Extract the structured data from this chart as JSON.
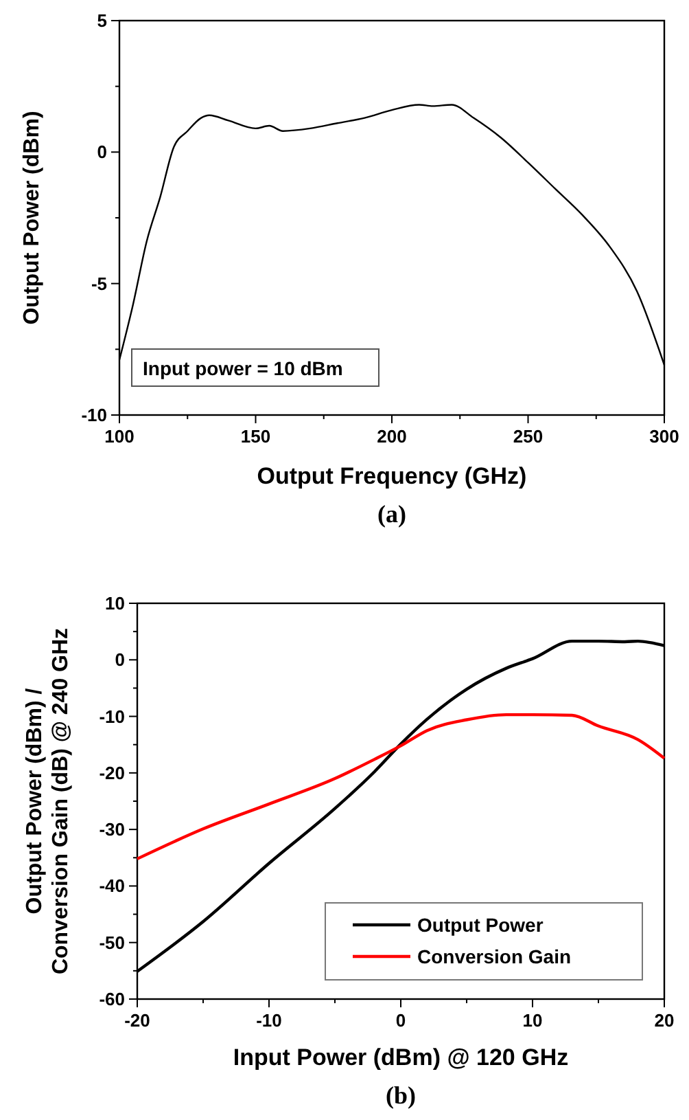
{
  "chart_data": [
    {
      "type": "line",
      "title": "(a)",
      "xlabel": "Output Frequency (GHz)",
      "ylabel": "Output Power (dBm)",
      "annotations": [
        "Input power = 10 dBm"
      ],
      "xlim": [
        100,
        300
      ],
      "xticks": [
        100,
        {
          "value": 125,
          "label": null
        },
        150,
        {
          "value": 175,
          "label": null
        },
        200,
        {
          "value": 225,
          "label": null
        },
        250,
        {
          "value": 275,
          "label": null
        },
        300
      ],
      "ylim": [
        -10,
        5
      ],
      "yticks": [
        -10,
        {
          "value": -7.5,
          "label": null
        },
        -5,
        {
          "value": -2.5,
          "label": null
        },
        0,
        {
          "value": 2.5,
          "label": null
        },
        5
      ],
      "grid": false,
      "legend": false,
      "series": [
        {
          "color": "#000000",
          "x": [
            100,
            105,
            110,
            115,
            120,
            125,
            130,
            133,
            140,
            150,
            155,
            160,
            170,
            180,
            190,
            200,
            210,
            215,
            222,
            230,
            240,
            250,
            260,
            270,
            280,
            290,
            300
          ],
          "values": [
            -7.9,
            -5.8,
            -3.4,
            -1.7,
            0.2,
            0.8,
            1.3,
            1.4,
            1.2,
            0.9,
            1.0,
            0.8,
            0.9,
            1.1,
            1.3,
            1.6,
            1.8,
            1.75,
            1.8,
            1.3,
            0.55,
            -0.4,
            -1.4,
            -2.4,
            -3.6,
            -5.3,
            -8.1
          ]
        }
      ]
    },
    {
      "type": "line",
      "title": "(b)",
      "xlabel": "Input Power (dBm) @ 120 GHz",
      "ylabel": "Output Power (dBm) /\nConversion Gain (dB) @ 240 GHz",
      "xlim": [
        -20,
        20
      ],
      "xticks": [
        -20,
        {
          "value": -15,
          "label": null
        },
        -10,
        {
          "value": -5,
          "label": null
        },
        0,
        {
          "value": 5,
          "label": null
        },
        10,
        {
          "value": 15,
          "label": null
        },
        20
      ],
      "ylim": [
        -60,
        10
      ],
      "yticks": [
        -60,
        {
          "value": -55,
          "label": null
        },
        -50,
        {
          "value": -45,
          "label": null
        },
        -40,
        {
          "value": -35,
          "label": null
        },
        -30,
        {
          "value": -25,
          "label": null
        },
        -20,
        {
          "value": -15,
          "label": null
        },
        -10,
        {
          "value": -5,
          "label": null
        },
        0,
        {
          "value": 5,
          "label": null
        },
        10
      ],
      "grid": false,
      "legend": "bottom right",
      "series": [
        {
          "name": "Output Power",
          "color": "#000000",
          "x": [
            -20,
            -15,
            -10,
            -5,
            -2,
            0,
            2,
            5,
            8,
            10,
            13,
            15,
            17,
            18,
            20
          ],
          "values": [
            -55.1,
            -46.3,
            -36.0,
            -26.3,
            -19.8,
            -14.9,
            -10.5,
            -5.2,
            -1.5,
            0.2,
            3.3,
            3.3,
            3.2,
            3.3,
            2.5
          ]
        },
        {
          "name": "Conversion Gain",
          "color": "#ff0000",
          "x": [
            -20,
            -15,
            -10,
            -5,
            -2,
            0,
            2,
            5,
            8,
            10,
            13,
            15,
            18,
            20
          ],
          "values": [
            -35.2,
            -29.9,
            -25.5,
            -21.0,
            -17.6,
            -15.2,
            -12.5,
            -10.6,
            -9.7,
            -9.7,
            -9.8,
            -11.7,
            -14.1,
            -17.4
          ]
        }
      ]
    }
  ]
}
